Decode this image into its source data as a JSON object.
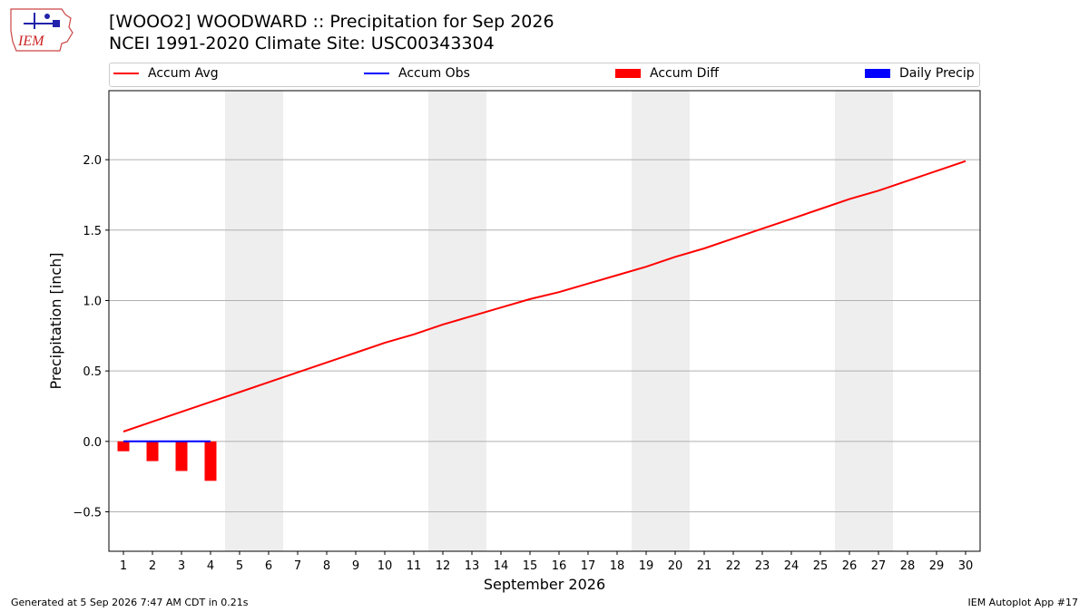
{
  "header": {
    "title_line1": "[WOOO2] WOODWARD :: Precipitation for Sep 2026",
    "title_line2": "NCEI 1991-2020 Climate Site: USC00343304",
    "logo_text": "IEM"
  },
  "legend": [
    {
      "label": "Accum Avg",
      "color": "#ff0000",
      "kind": "line"
    },
    {
      "label": "Accum Obs",
      "color": "#0000ff",
      "kind": "line"
    },
    {
      "label": "Accum Diff",
      "color": "#ff0000",
      "kind": "box"
    },
    {
      "label": "Daily Precip",
      "color": "#0000ff",
      "kind": "box"
    }
  ],
  "footer": {
    "left": "Generated at 5 Sep 2026 7:47 AM CDT in 0.21s",
    "right": "IEM Autoplot App #17"
  },
  "chart_data": {
    "type": "line",
    "xlabel": "September 2026",
    "ylabel": "Precipitation [inch]",
    "x": [
      1,
      2,
      3,
      4,
      5,
      6,
      7,
      8,
      9,
      10,
      11,
      12,
      13,
      14,
      15,
      16,
      17,
      18,
      19,
      20,
      21,
      22,
      23,
      24,
      25,
      26,
      27,
      28,
      29,
      30
    ],
    "xlim": [
      0.5,
      30.5
    ],
    "ylim": [
      -0.78,
      2.49
    ],
    "yticks": [
      -0.5,
      0.0,
      0.5,
      1.0,
      1.5,
      2.0
    ],
    "ytick_labels": [
      "−0.5",
      "0.0",
      "0.5",
      "1.0",
      "1.5",
      "2.0"
    ],
    "grid": "horizontal",
    "weekend_bands": [
      [
        5,
        6
      ],
      [
        12,
        13
      ],
      [
        19,
        20
      ],
      [
        26,
        27
      ]
    ],
    "series": [
      {
        "name": "Accum Avg",
        "type": "line",
        "color": "#ff0000",
        "values": [
          0.07,
          0.14,
          0.21,
          0.28,
          0.35,
          0.42,
          0.49,
          0.56,
          0.63,
          0.7,
          0.76,
          0.83,
          0.89,
          0.95,
          1.01,
          1.06,
          1.12,
          1.18,
          1.24,
          1.31,
          1.37,
          1.44,
          1.51,
          1.58,
          1.65,
          1.72,
          1.78,
          1.85,
          1.92,
          1.99
        ]
      },
      {
        "name": "Accum Obs",
        "type": "line",
        "color": "#0000ff",
        "x": [
          1,
          2,
          3,
          4
        ],
        "values": [
          0.0,
          0.0,
          0.0,
          0.0
        ]
      },
      {
        "name": "Accum Diff",
        "type": "bar",
        "color": "#ff0000",
        "x": [
          1,
          2,
          3,
          4
        ],
        "values": [
          -0.07,
          -0.14,
          -0.21,
          -0.28
        ]
      },
      {
        "name": "Daily Precip",
        "type": "bar",
        "color": "#0000ff",
        "x": [
          1,
          2,
          3,
          4
        ],
        "values": [
          0.0,
          0.0,
          0.0,
          0.0
        ]
      }
    ]
  }
}
